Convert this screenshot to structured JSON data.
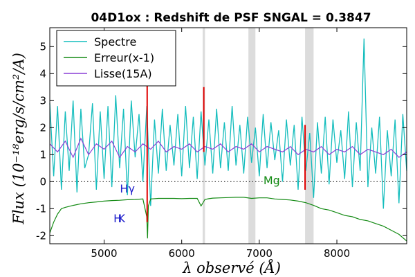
{
  "chart_data": {
    "type": "line",
    "title": "04D1ox : Redshift de PSF SNGAL = 0.3847",
    "xlabel": "λ observé (Å)",
    "ylabel": "Flux (10⁻¹⁸erg/s/cm²/A)",
    "xlim": [
      4300,
      8900
    ],
    "ylim": [
      -2.3,
      5.7
    ],
    "x_ticks": [
      5000,
      6000,
      7000,
      8000
    ],
    "x_tick_labels": [
      "5000",
      "6000",
      "7000",
      "8000"
    ],
    "y_ticks": [
      -2,
      -1,
      0,
      1,
      2,
      3,
      4,
      5
    ],
    "y_tick_labels": [
      "-2",
      "-1",
      "0",
      "1",
      "2",
      "3",
      "4",
      "5"
    ],
    "legend_position": "top-left",
    "zero_line": true,
    "telluric_bands": [
      [
        6270,
        6300
      ],
      [
        6860,
        6950
      ],
      [
        7590,
        7700
      ]
    ],
    "series": [
      {
        "name": "Spectre",
        "color": "#14bdbd",
        "x": [
          4300,
          4350,
          4400,
          4450,
          4500,
          4550,
          4600,
          4650,
          4700,
          4750,
          4800,
          4850,
          4900,
          4950,
          5000,
          5050,
          5100,
          5150,
          5200,
          5250,
          5300,
          5350,
          5400,
          5450,
          5500,
          5550,
          5600,
          5650,
          5700,
          5750,
          5800,
          5850,
          5900,
          5950,
          6000,
          6050,
          6100,
          6150,
          6200,
          6250,
          6300,
          6350,
          6400,
          6450,
          6500,
          6550,
          6600,
          6650,
          6700,
          6750,
          6800,
          6850,
          6900,
          6950,
          7000,
          7050,
          7100,
          7150,
          7200,
          7250,
          7300,
          7350,
          7400,
          7450,
          7500,
          7550,
          7600,
          7650,
          7700,
          7750,
          7800,
          7850,
          7900,
          7950,
          8000,
          8050,
          8100,
          8150,
          8200,
          8250,
          8300,
          8350,
          8400,
          8450,
          8500,
          8550,
          8600,
          8650,
          8700,
          8750,
          8800,
          8850,
          8900
        ],
        "y": [
          2.9,
          0.2,
          2.8,
          -0.3,
          2.6,
          0.4,
          3.0,
          -0.4,
          2.7,
          0.5,
          1.0,
          2.9,
          -0.3,
          2.6,
          0.1,
          2.8,
          -0.2,
          3.2,
          0.5,
          2.7,
          -0.5,
          3.0,
          0.9,
          2.5,
          0.0,
          2.8,
          -0.9,
          2.3,
          0.3,
          2.7,
          0.4,
          2.1,
          0.6,
          2.5,
          0.2,
          2.8,
          0.5,
          2.4,
          0.1,
          2.6,
          0.6,
          2.3,
          0.3,
          2.7,
          0.5,
          2.2,
          0.4,
          2.8,
          0.6,
          2.1,
          0.3,
          2.4,
          0.7,
          2.0,
          0.2,
          2.5,
          0.5,
          2.2,
          0.8,
          1.9,
          0.0,
          2.3,
          0.6,
          2.1,
          -0.3,
          2.4,
          0.4,
          1.8,
          -0.6,
          2.2,
          0.3,
          2.4,
          -0.1,
          2.3,
          0.7,
          1.9,
          0.1,
          2.6,
          -0.2,
          2.2,
          0.4,
          5.3,
          -0.2,
          2.0,
          0.3,
          2.4,
          -1.0,
          1.9,
          0.2,
          2.3,
          -0.8,
          2.5,
          0.4
        ]
      },
      {
        "name": "Erreur(x-1)",
        "color": "#138a13",
        "x": [
          4300,
          4350,
          4400,
          4450,
          4500,
          4600,
          4700,
          4800,
          4900,
          5000,
          5100,
          5200,
          5300,
          5400,
          5500,
          5550,
          5560,
          5570,
          5600,
          5700,
          5800,
          5900,
          6000,
          6100,
          6200,
          6250,
          6300,
          6350,
          6400,
          6500,
          6600,
          6700,
          6800,
          6900,
          7000,
          7100,
          7200,
          7300,
          7400,
          7500,
          7600,
          7700,
          7800,
          7900,
          8000,
          8100,
          8200,
          8300,
          8400,
          8500,
          8600,
          8700,
          8800,
          8900
        ],
        "y": [
          -1.9,
          -1.5,
          -1.2,
          -1.0,
          -0.95,
          -0.88,
          -0.82,
          -0.78,
          -0.75,
          -0.72,
          -0.7,
          -0.69,
          -0.67,
          -0.66,
          -0.64,
          -1.3,
          -2.1,
          -0.9,
          -0.64,
          -0.62,
          -0.62,
          -0.62,
          -0.63,
          -0.62,
          -0.62,
          -0.9,
          -0.66,
          -0.63,
          -0.61,
          -0.6,
          -0.59,
          -0.58,
          -0.58,
          -0.62,
          -0.6,
          -0.6,
          -0.64,
          -0.66,
          -0.68,
          -0.72,
          -0.78,
          -0.88,
          -1.0,
          -1.05,
          -1.15,
          -1.25,
          -1.3,
          -1.4,
          -1.45,
          -1.55,
          -1.65,
          -1.8,
          -1.95,
          -2.2
        ]
      },
      {
        "name": "Lisse(15A)",
        "color": "#8a3ed6",
        "x": [
          4300,
          4400,
          4500,
          4600,
          4700,
          4800,
          4900,
          5000,
          5100,
          5200,
          5300,
          5400,
          5500,
          5600,
          5700,
          5800,
          5900,
          6000,
          6100,
          6200,
          6300,
          6400,
          6500,
          6600,
          6700,
          6800,
          6900,
          7000,
          7100,
          7200,
          7300,
          7400,
          7500,
          7600,
          7700,
          7800,
          7900,
          8000,
          8100,
          8200,
          8300,
          8400,
          8500,
          8600,
          8700,
          8800,
          8900
        ],
        "y": [
          1.4,
          1.1,
          1.5,
          0.9,
          1.6,
          1.0,
          1.4,
          1.2,
          1.5,
          0.9,
          1.3,
          1.1,
          1.4,
          1.2,
          1.5,
          1.1,
          1.3,
          1.2,
          1.4,
          1.1,
          1.3,
          1.2,
          1.4,
          1.1,
          1.3,
          1.2,
          1.4,
          1.1,
          1.3,
          1.2,
          1.1,
          1.3,
          1.0,
          1.2,
          1.1,
          1.3,
          1.0,
          1.2,
          1.1,
          1.3,
          1.0,
          1.2,
          1.1,
          1.0,
          1.2,
          0.9,
          1.1
        ]
      }
    ],
    "line_markers": [
      {
        "label": "Hγ",
        "x": 5300,
        "y": -0.4,
        "color": "#2222cc"
      },
      {
        "label": "H",
        "x": 5175,
        "y": -1.5,
        "color": "#2222cc"
      },
      {
        "label": "K",
        "x": 5225,
        "y": -1.5,
        "color": "#2222cc"
      },
      {
        "label": "Mg",
        "x": 7160,
        "y": -0.1,
        "color": "#138a13"
      }
    ],
    "red_marks": [
      {
        "x": 5555,
        "y1": -1.5,
        "y2": 4.2
      },
      {
        "x": 6285,
        "y1": 1.1,
        "y2": 3.5
      },
      {
        "x": 7590,
        "y1": -0.3,
        "y2": 2.1
      }
    ]
  }
}
